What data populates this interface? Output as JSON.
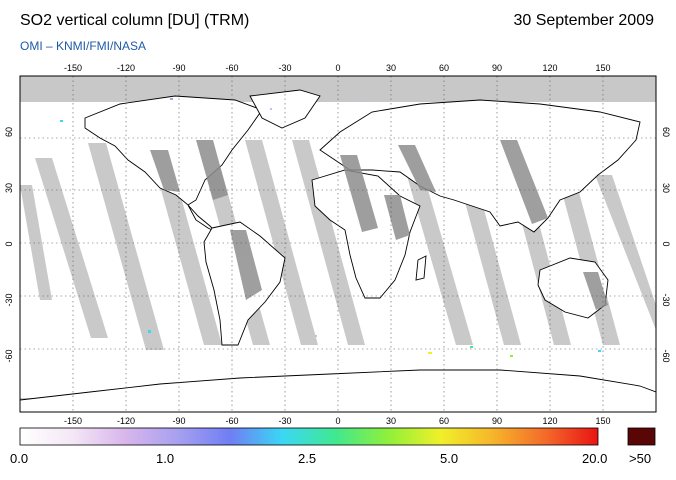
{
  "header": {
    "title": "SO2 vertical column [DU] (TRM)",
    "date": "30 September 2009",
    "credit": "OMI  –  KNMI/FMI/NASA"
  },
  "map": {
    "lon_ticks": [
      "-150",
      "-120",
      "-90",
      "-60",
      "-30",
      "0",
      "30",
      "60",
      "90",
      "120",
      "150"
    ],
    "lat_ticks": [
      "60",
      "30",
      "0",
      "-30",
      "-60"
    ],
    "colors": {
      "ocean": "#ffffff",
      "polar_no_data": "#c8c8c8",
      "swath_light": "#c9c9c9",
      "swath_dark": "#8e8e8e",
      "coastline": "#000000",
      "grid": "#444444"
    }
  },
  "colorbar": {
    "labels": [
      "0.0",
      "1.0",
      "2.5",
      "5.0",
      "20.0"
    ],
    "overflow_label": ">50",
    "stops": [
      "#ffffff",
      "#f4e7f6",
      "#d8b6ec",
      "#a8a0f0",
      "#6f7ef4",
      "#3ad8f4",
      "#40e890",
      "#8ef03a",
      "#f0f02a",
      "#f6b52a",
      "#f46a2a",
      "#e81414"
    ],
    "overflow_color": "#5a0606"
  }
}
